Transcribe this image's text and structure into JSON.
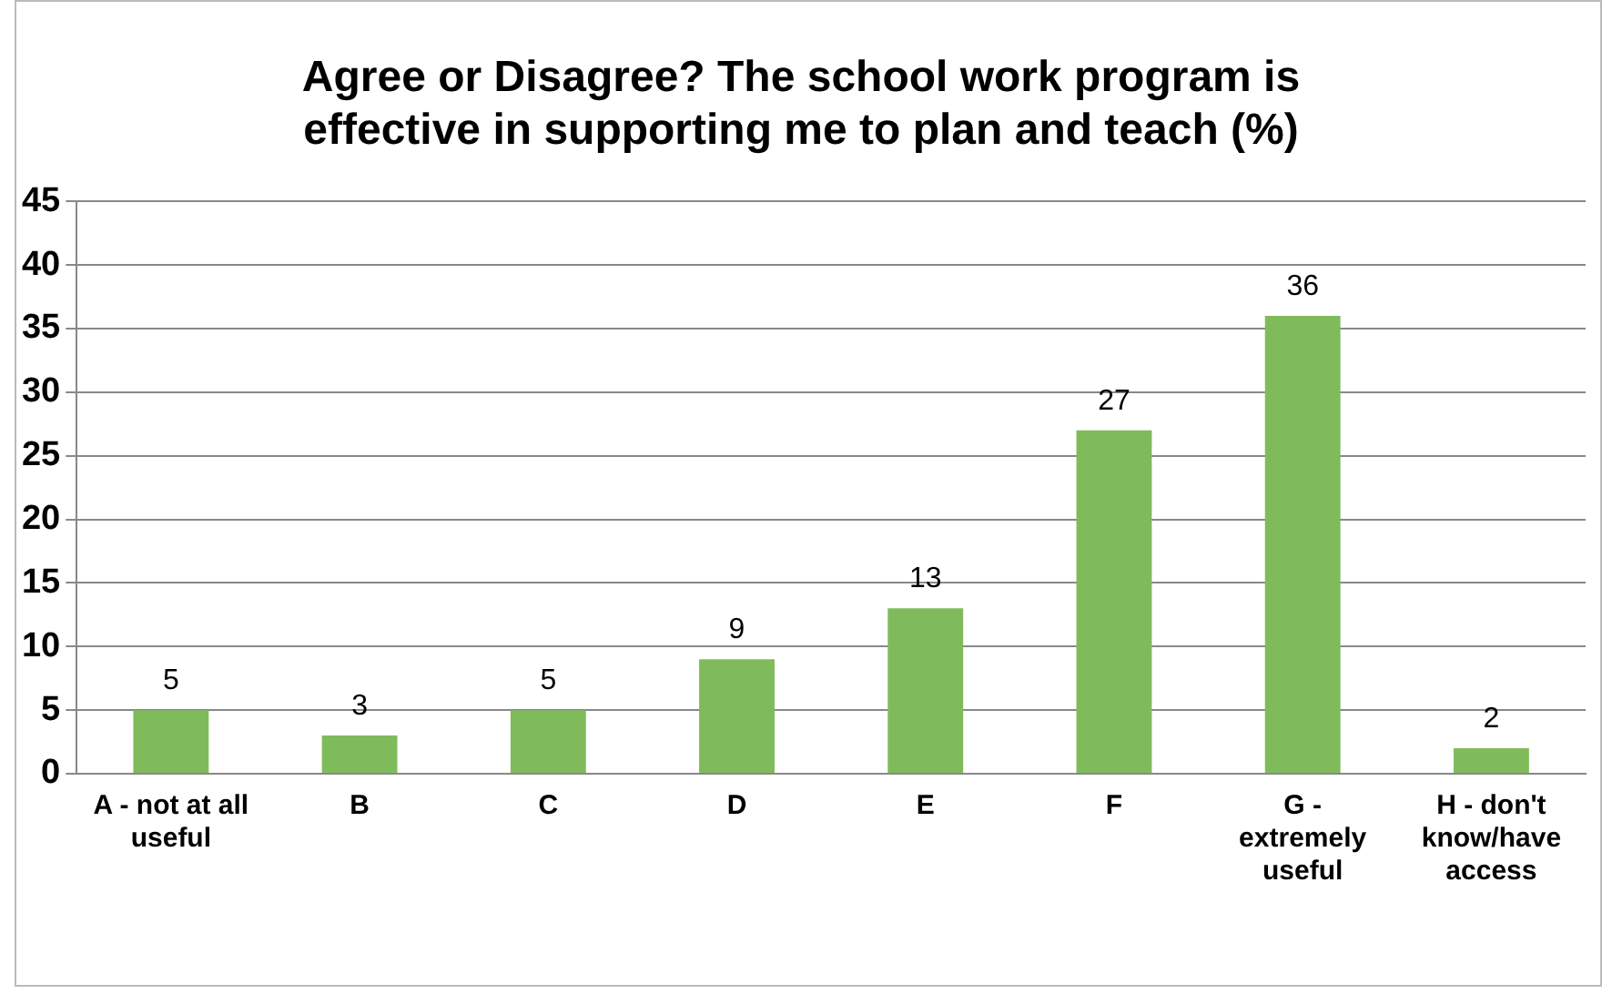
{
  "chart_data": {
    "type": "bar",
    "title": "Agree or Disagree? The school work program is effective in supporting me to plan and teach (%)",
    "categories": [
      "A - not at all useful",
      "B",
      "C",
      "D",
      "E",
      "F",
      "G - extremely useful",
      "H - don't know/have access"
    ],
    "values": [
      5,
      3,
      5,
      9,
      13,
      27,
      36,
      2
    ],
    "color": "#80bb5b",
    "ylim": [
      0,
      45
    ],
    "yticks": [
      0,
      5,
      10,
      15,
      20,
      25,
      30,
      35,
      40,
      45
    ],
    "grid": "y",
    "data_labels": true,
    "legend": false
  }
}
